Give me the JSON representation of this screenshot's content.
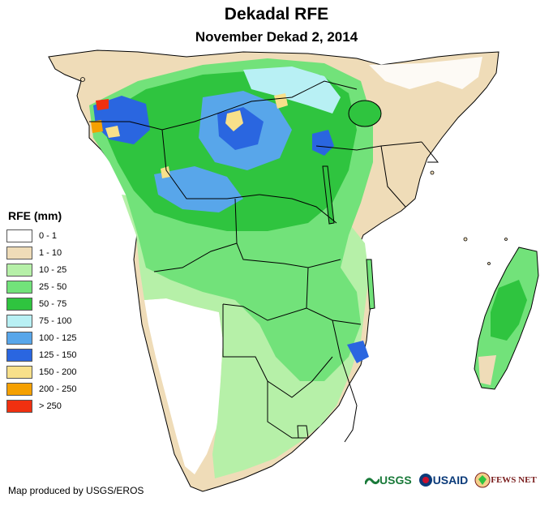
{
  "title": "Dekadal RFE",
  "subtitle": "November Dekad 2, 2014",
  "legend": {
    "title": "RFE (mm)",
    "items": [
      {
        "label": "0 - 1",
        "color": "#ffffff"
      },
      {
        "label": "1 - 10",
        "color": "#efdcb8"
      },
      {
        "label": "10 - 25",
        "color": "#b6f0a8"
      },
      {
        "label": "25 - 50",
        "color": "#72e27a"
      },
      {
        "label": "50 - 75",
        "color": "#2fc43f"
      },
      {
        "label": "75 - 100",
        "color": "#b8f0f4"
      },
      {
        "label": "100 - 125",
        "color": "#58a6ea"
      },
      {
        "label": "125 - 150",
        "color": "#2a66e0"
      },
      {
        "label": "150 - 200",
        "color": "#f8e08a"
      },
      {
        "label": "200 - 250",
        "color": "#f5a000"
      },
      {
        "label": "> 250",
        "color": "#f03010"
      }
    ]
  },
  "footer": "Map produced by USGS/EROS",
  "logos": {
    "usgs": "USGS",
    "usaid": "USAID",
    "fews": "FEWS NET"
  }
}
